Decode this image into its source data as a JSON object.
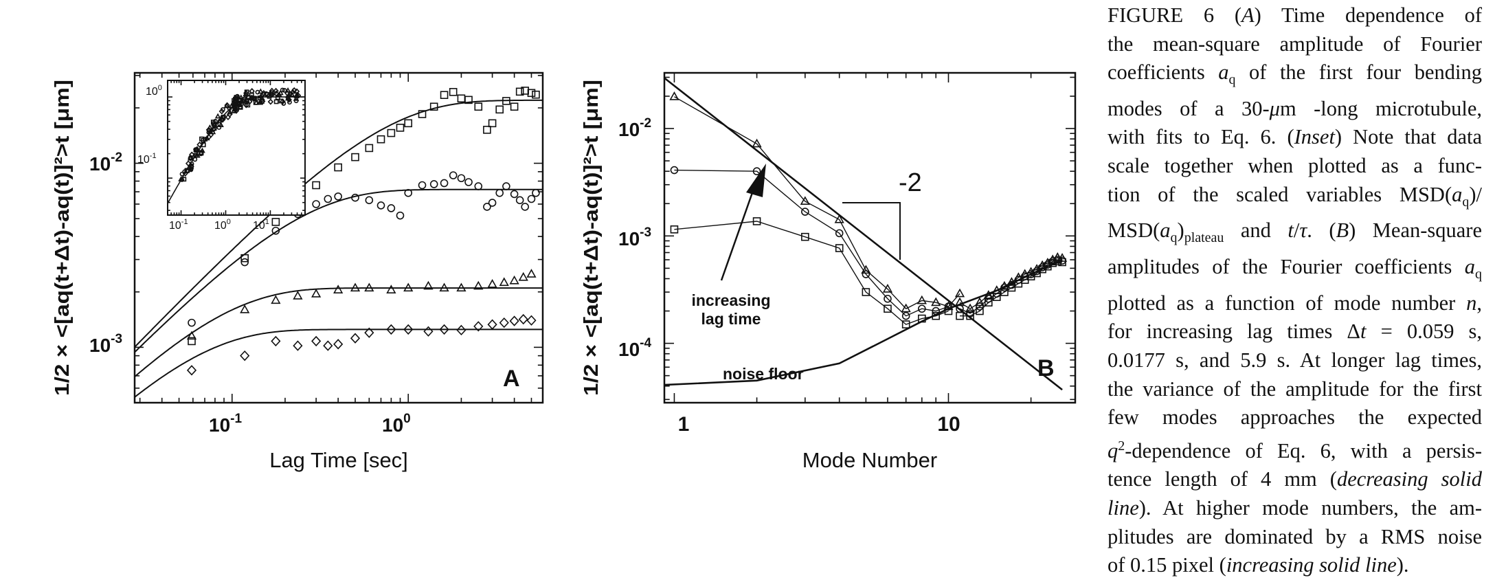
{
  "panels": {
    "a": {
      "letter": "A",
      "xlabel": "Lag Time [sec]",
      "ylabel": "1/2 × <[aq(t+Δt)-aq(t)]²>t [μm]",
      "x_ticks": [
        "10^-1",
        "10^0"
      ],
      "y_ticks": [
        "10^-2",
        "10^-3"
      ],
      "inset_x_ticks": [
        "10^-1",
        "10^0",
        "10^1"
      ],
      "inset_y_ticks": [
        "10^0",
        "10^-1"
      ]
    },
    "b": {
      "letter": "B",
      "xlabel": "Mode Number",
      "ylabel": "1/2 × <[aq(t+Δt)-aq(t)]²>t [μm]",
      "x_ticks": [
        "1",
        "10"
      ],
      "y_ticks": [
        "10^-2",
        "10^-3",
        "10^-4"
      ],
      "slope_label": "-2",
      "arrow_label": [
        "increasing",
        "lag time"
      ],
      "noise_label": "noise floor"
    }
  },
  "chart_data": [
    {
      "type": "scatter",
      "panel": "A",
      "xscale": "log",
      "yscale": "log",
      "xlim": [
        0.028,
        5.8
      ],
      "ylim": [
        0.0005,
        0.031
      ],
      "xlabel": "Lag Time [sec]",
      "ylabel": "1/2 × <[aq(t+Δt)-aq(t)]²>t [μm]",
      "series": [
        {
          "marker": "square",
          "plateau": 0.022,
          "tau": 0.6,
          "points": [
            [
              0.059,
              0.00108
            ],
            [
              0.118,
              0.00305
            ],
            [
              0.177,
              0.0048
            ],
            [
              0.236,
              0.0063
            ],
            [
              0.3,
              0.0076
            ],
            [
              0.4,
              0.0095
            ],
            [
              0.5,
              0.0108
            ],
            [
              0.6,
              0.0121
            ],
            [
              0.7,
              0.0135
            ],
            [
              0.8,
              0.0146
            ],
            [
              0.9,
              0.0156
            ],
            [
              1.0,
              0.0165
            ],
            [
              1.2,
              0.0185
            ],
            [
              1.4,
              0.0203
            ],
            [
              1.6,
              0.0235
            ],
            [
              1.8,
              0.0244
            ],
            [
              2.0,
              0.0225
            ],
            [
              2.2,
              0.0221
            ],
            [
              2.5,
              0.0203
            ],
            [
              2.8,
              0.0152
            ],
            [
              3.0,
              0.0165
            ],
            [
              3.3,
              0.0196
            ],
            [
              3.6,
              0.0218
            ],
            [
              4.0,
              0.0203
            ],
            [
              4.3,
              0.0245
            ],
            [
              4.6,
              0.0248
            ],
            [
              5.0,
              0.0241
            ],
            [
              5.3,
              0.0236
            ]
          ]
        },
        {
          "marker": "circle",
          "plateau": 0.0072,
          "tau": 0.2,
          "points": [
            [
              0.059,
              0.00136
            ],
            [
              0.118,
              0.0029
            ],
            [
              0.177,
              0.0043
            ],
            [
              0.236,
              0.0053
            ],
            [
              0.3,
              0.006
            ],
            [
              0.35,
              0.0064
            ],
            [
              0.4,
              0.0066
            ],
            [
              0.5,
              0.0065
            ],
            [
              0.6,
              0.0063
            ],
            [
              0.7,
              0.0059
            ],
            [
              0.8,
              0.0057
            ],
            [
              0.9,
              0.0052
            ],
            [
              1.0,
              0.0069
            ],
            [
              1.2,
              0.0076
            ],
            [
              1.4,
              0.0077
            ],
            [
              1.6,
              0.0078
            ],
            [
              1.8,
              0.0086
            ],
            [
              2.0,
              0.0083
            ],
            [
              2.2,
              0.0079
            ],
            [
              2.5,
              0.0075
            ],
            [
              2.8,
              0.0058
            ],
            [
              3.0,
              0.0061
            ],
            [
              3.3,
              0.0069
            ],
            [
              3.6,
              0.0075
            ],
            [
              4.0,
              0.0068
            ],
            [
              4.3,
              0.0063
            ],
            [
              4.6,
              0.0058
            ],
            [
              5.0,
              0.0064
            ],
            [
              5.3,
              0.0069
            ]
          ]
        },
        {
          "marker": "triangle",
          "plateau": 0.0021,
          "tau": 0.07,
          "points": [
            [
              0.059,
              0.00115
            ],
            [
              0.118,
              0.0016
            ],
            [
              0.177,
              0.0018
            ],
            [
              0.236,
              0.0019
            ],
            [
              0.3,
              0.00195
            ],
            [
              0.4,
              0.00205
            ],
            [
              0.5,
              0.0021
            ],
            [
              0.6,
              0.0021
            ],
            [
              0.8,
              0.00205
            ],
            [
              1.0,
              0.0021
            ],
            [
              1.3,
              0.00215
            ],
            [
              1.6,
              0.0021
            ],
            [
              2.0,
              0.0021
            ],
            [
              2.5,
              0.00215
            ],
            [
              3.0,
              0.0022
            ],
            [
              3.5,
              0.00225
            ],
            [
              4.0,
              0.0023
            ],
            [
              4.5,
              0.0024
            ],
            [
              5.0,
              0.0025
            ]
          ]
        },
        {
          "marker": "diamond",
          "plateau": 0.00125,
          "tau": 0.05,
          "points": [
            [
              0.059,
              0.00075
            ],
            [
              0.118,
              0.0009
            ],
            [
              0.177,
              0.00108
            ],
            [
              0.236,
              0.00102
            ],
            [
              0.3,
              0.00108
            ],
            [
              0.35,
              0.00102
            ],
            [
              0.4,
              0.00104
            ],
            [
              0.5,
              0.00112
            ],
            [
              0.6,
              0.0012
            ],
            [
              0.8,
              0.00125
            ],
            [
              1.0,
              0.00125
            ],
            [
              1.3,
              0.00122
            ],
            [
              1.6,
              0.00125
            ],
            [
              2.0,
              0.00124
            ],
            [
              2.5,
              0.0013
            ],
            [
              3.0,
              0.00133
            ],
            [
              3.5,
              0.00136
            ],
            [
              4.0,
              0.00139
            ],
            [
              4.5,
              0.00142
            ],
            [
              5.0,
              0.0014
            ]
          ]
        }
      ],
      "inset": {
        "xscale": "log",
        "yscale": "log",
        "xlim": [
          0.05,
          60
        ],
        "ylim": [
          0.035,
          1.6
        ],
        "note": "scaled MSD/MSD_plateau vs t/tau; all modes collapse",
        "points": [
          [
            0.1,
            0.1
          ],
          [
            0.2,
            0.19
          ],
          [
            0.5,
            0.4
          ],
          [
            1,
            0.65
          ],
          [
            2,
            0.85
          ],
          [
            5,
            0.97
          ],
          [
            10,
            1.0
          ],
          [
            20,
            1.02
          ],
          [
            40,
            1.05
          ]
        ]
      }
    },
    {
      "type": "line",
      "panel": "B",
      "xscale": "log",
      "yscale": "log",
      "xlim": [
        0.92,
        29
      ],
      "ylim": [
        2.8e-05,
        0.033
      ],
      "xlabel": "Mode Number",
      "ylabel": "1/2 × <[aq(t+Δt)-aq(t)]²>t [μm]",
      "series": [
        {
          "marker": "triangle",
          "points": [
            [
              1,
              0.0198
            ],
            [
              2,
              0.0072
            ],
            [
              3,
              0.0021
            ],
            [
              4,
              0.00142
            ],
            [
              5,
              0.00048
            ],
            [
              6,
              0.00032
            ],
            [
              7,
              0.00021
            ],
            [
              8,
              0.00025
            ],
            [
              9,
              0.00024
            ],
            [
              10,
              0.00022
            ],
            [
              11,
              0.00029
            ]
          ]
        },
        {
          "marker": "circle",
          "points": [
            [
              1,
              0.0041
            ],
            [
              2,
              0.004
            ],
            [
              3,
              0.00168
            ],
            [
              4,
              0.00106
            ],
            [
              5,
              0.00044
            ],
            [
              6,
              0.00026
            ],
            [
              7,
              0.00018
            ],
            [
              8,
              0.00021
            ],
            [
              9,
              0.0002
            ],
            [
              10,
              0.00022
            ]
          ]
        },
        {
          "marker": "square",
          "points": [
            [
              1,
              0.00115
            ],
            [
              2,
              0.00137
            ],
            [
              3,
              0.00098
            ],
            [
              4,
              0.00077
            ],
            [
              5,
              0.0003
            ],
            [
              6,
              0.00021
            ],
            [
              7,
              0.00015
            ],
            [
              8,
              0.00017
            ],
            [
              9,
              0.00018
            ],
            [
              10,
              0.0002
            ]
          ]
        },
        {
          "marker": "triangle",
          "points": [
            [
              11,
              0.00024
            ],
            [
              12,
              0.00021
            ],
            [
              13,
              0.00024
            ],
            [
              14,
              0.00028
            ],
            [
              15,
              0.00031
            ],
            [
              16,
              0.00034
            ],
            [
              17,
              0.00037
            ],
            [
              18,
              0.00041
            ],
            [
              19,
              0.00044
            ],
            [
              20,
              0.00046
            ],
            [
              21,
              0.00049
            ],
            [
              22,
              0.00053
            ],
            [
              23,
              0.00056
            ],
            [
              24,
              0.0006
            ],
            [
              25,
              0.00063
            ],
            [
              26,
              0.00062
            ]
          ]
        },
        {
          "marker": "circle",
          "points": [
            [
              11,
              0.00021
            ],
            [
              12,
              0.00019
            ],
            [
              13,
              0.00022
            ],
            [
              14,
              0.00026
            ],
            [
              15,
              0.00029
            ],
            [
              16,
              0.00033
            ],
            [
              17,
              0.00035
            ],
            [
              18,
              0.00039
            ],
            [
              19,
              0.00042
            ],
            [
              20,
              0.00044
            ],
            [
              21,
              0.00047
            ],
            [
              22,
              0.00051
            ],
            [
              23,
              0.00054
            ],
            [
              24,
              0.00058
            ],
            [
              25,
              0.0006
            ],
            [
              26,
              0.00059
            ]
          ]
        },
        {
          "marker": "square",
          "points": [
            [
              11,
              0.00018
            ],
            [
              12,
              0.00018
            ],
            [
              13,
              0.0002
            ],
            [
              14,
              0.00024
            ],
            [
              15,
              0.00027
            ],
            [
              16,
              0.0003
            ],
            [
              17,
              0.00033
            ],
            [
              18,
              0.00036
            ],
            [
              19,
              0.00039
            ],
            [
              20,
              0.00042
            ],
            [
              21,
              0.00045
            ],
            [
              22,
              0.00049
            ],
            [
              23,
              0.00052
            ],
            [
              24,
              0.00056
            ],
            [
              25,
              0.00058
            ],
            [
              26,
              0.00057
            ]
          ]
        }
      ],
      "fits": {
        "decreasing": {
          "form": "A*n^-2",
          "A": 0.025,
          "n_range": [
            0.92,
            26
          ]
        },
        "noise_floor": {
          "points": [
            [
              0.92,
              4.1e-05
            ],
            [
              2,
              4.5e-05
            ],
            [
              4,
              6.5e-05
            ],
            [
              6,
              0.00011
            ],
            [
              8,
              0.00016
            ],
            [
              10,
              0.00021
            ],
            [
              15,
              0.00031
            ],
            [
              20,
              0.00044
            ],
            [
              26,
              0.0006
            ]
          ]
        }
      }
    }
  ],
  "caption": {
    "lines": [
      [
        {
          "t": "FIGURE 6   ("
        },
        {
          "t": "A",
          "i": true
        },
        {
          "t": ") Time dependence of"
        }
      ],
      [
        {
          "t": "the mean-square amplitude of Fourier"
        }
      ],
      [
        {
          "t": "coefficients "
        },
        {
          "t": "a",
          "i": true
        },
        {
          "t": "q",
          "sub": true
        },
        {
          "t": " of the first four bending"
        }
      ],
      [
        {
          "t": "modes of a 30-"
        },
        {
          "t": "μ",
          "i": true
        },
        {
          "t": "m -long microtubule,"
        }
      ],
      [
        {
          "t": "with fits to Eq. 6. ("
        },
        {
          "t": "Inset",
          "i": true
        },
        {
          "t": ") Note that data"
        }
      ],
      [
        {
          "t": "scale together when plotted as a func-"
        }
      ],
      [
        {
          "t": "tion of the scaled variables MSD("
        },
        {
          "t": "a",
          "i": true
        },
        {
          "t": "q",
          "sub": true
        },
        {
          "t": ")/"
        }
      ],
      [
        {
          "t": "MSD("
        },
        {
          "t": "a",
          "i": true
        },
        {
          "t": "q",
          "sub": true
        },
        {
          "t": ")"
        },
        {
          "t": "plateau",
          "sub": true
        },
        {
          "t": " and "
        },
        {
          "t": "t",
          "i": true
        },
        {
          "t": "/"
        },
        {
          "t": "τ",
          "i": true
        },
        {
          "t": ". ("
        },
        {
          "t": "B",
          "i": true
        },
        {
          "t": ") Mean-square"
        }
      ],
      [
        {
          "t": "amplitudes of the Fourier coefficients "
        },
        {
          "t": "a",
          "i": true
        },
        {
          "t": "q",
          "sub": true
        }
      ],
      [
        {
          "t": "plotted as a function of mode number "
        },
        {
          "t": "n",
          "i": true
        },
        {
          "t": ","
        }
      ],
      [
        {
          "t": "for increasing lag times Δ"
        },
        {
          "t": "t",
          "i": true
        },
        {
          "t": " = 0.059 s,"
        }
      ],
      [
        {
          "t": "0.0177 s, and 5.9 s. At longer lag times,"
        }
      ],
      [
        {
          "t": "the variance of the amplitude for the first"
        }
      ],
      [
        {
          "t": "few modes approaches the expected"
        }
      ],
      [
        {
          "t": "q",
          "i": true
        },
        {
          "t": "2",
          "sup": true
        },
        {
          "t": "-dependence of Eq. 6, with a persis-"
        }
      ],
      [
        {
          "t": "tence length of 4 mm ("
        },
        {
          "t": "decreasing solid",
          "i": true
        }
      ],
      [
        {
          "t": "line",
          "i": true
        },
        {
          "t": "). At higher mode numbers, the am-"
        }
      ],
      [
        {
          "t": "plitudes are dominated by a RMS noise"
        }
      ],
      [
        {
          "t": "of 0.15 pixel ("
        },
        {
          "t": "increasing solid line",
          "i": true
        },
        {
          "t": ")."
        }
      ]
    ]
  }
}
